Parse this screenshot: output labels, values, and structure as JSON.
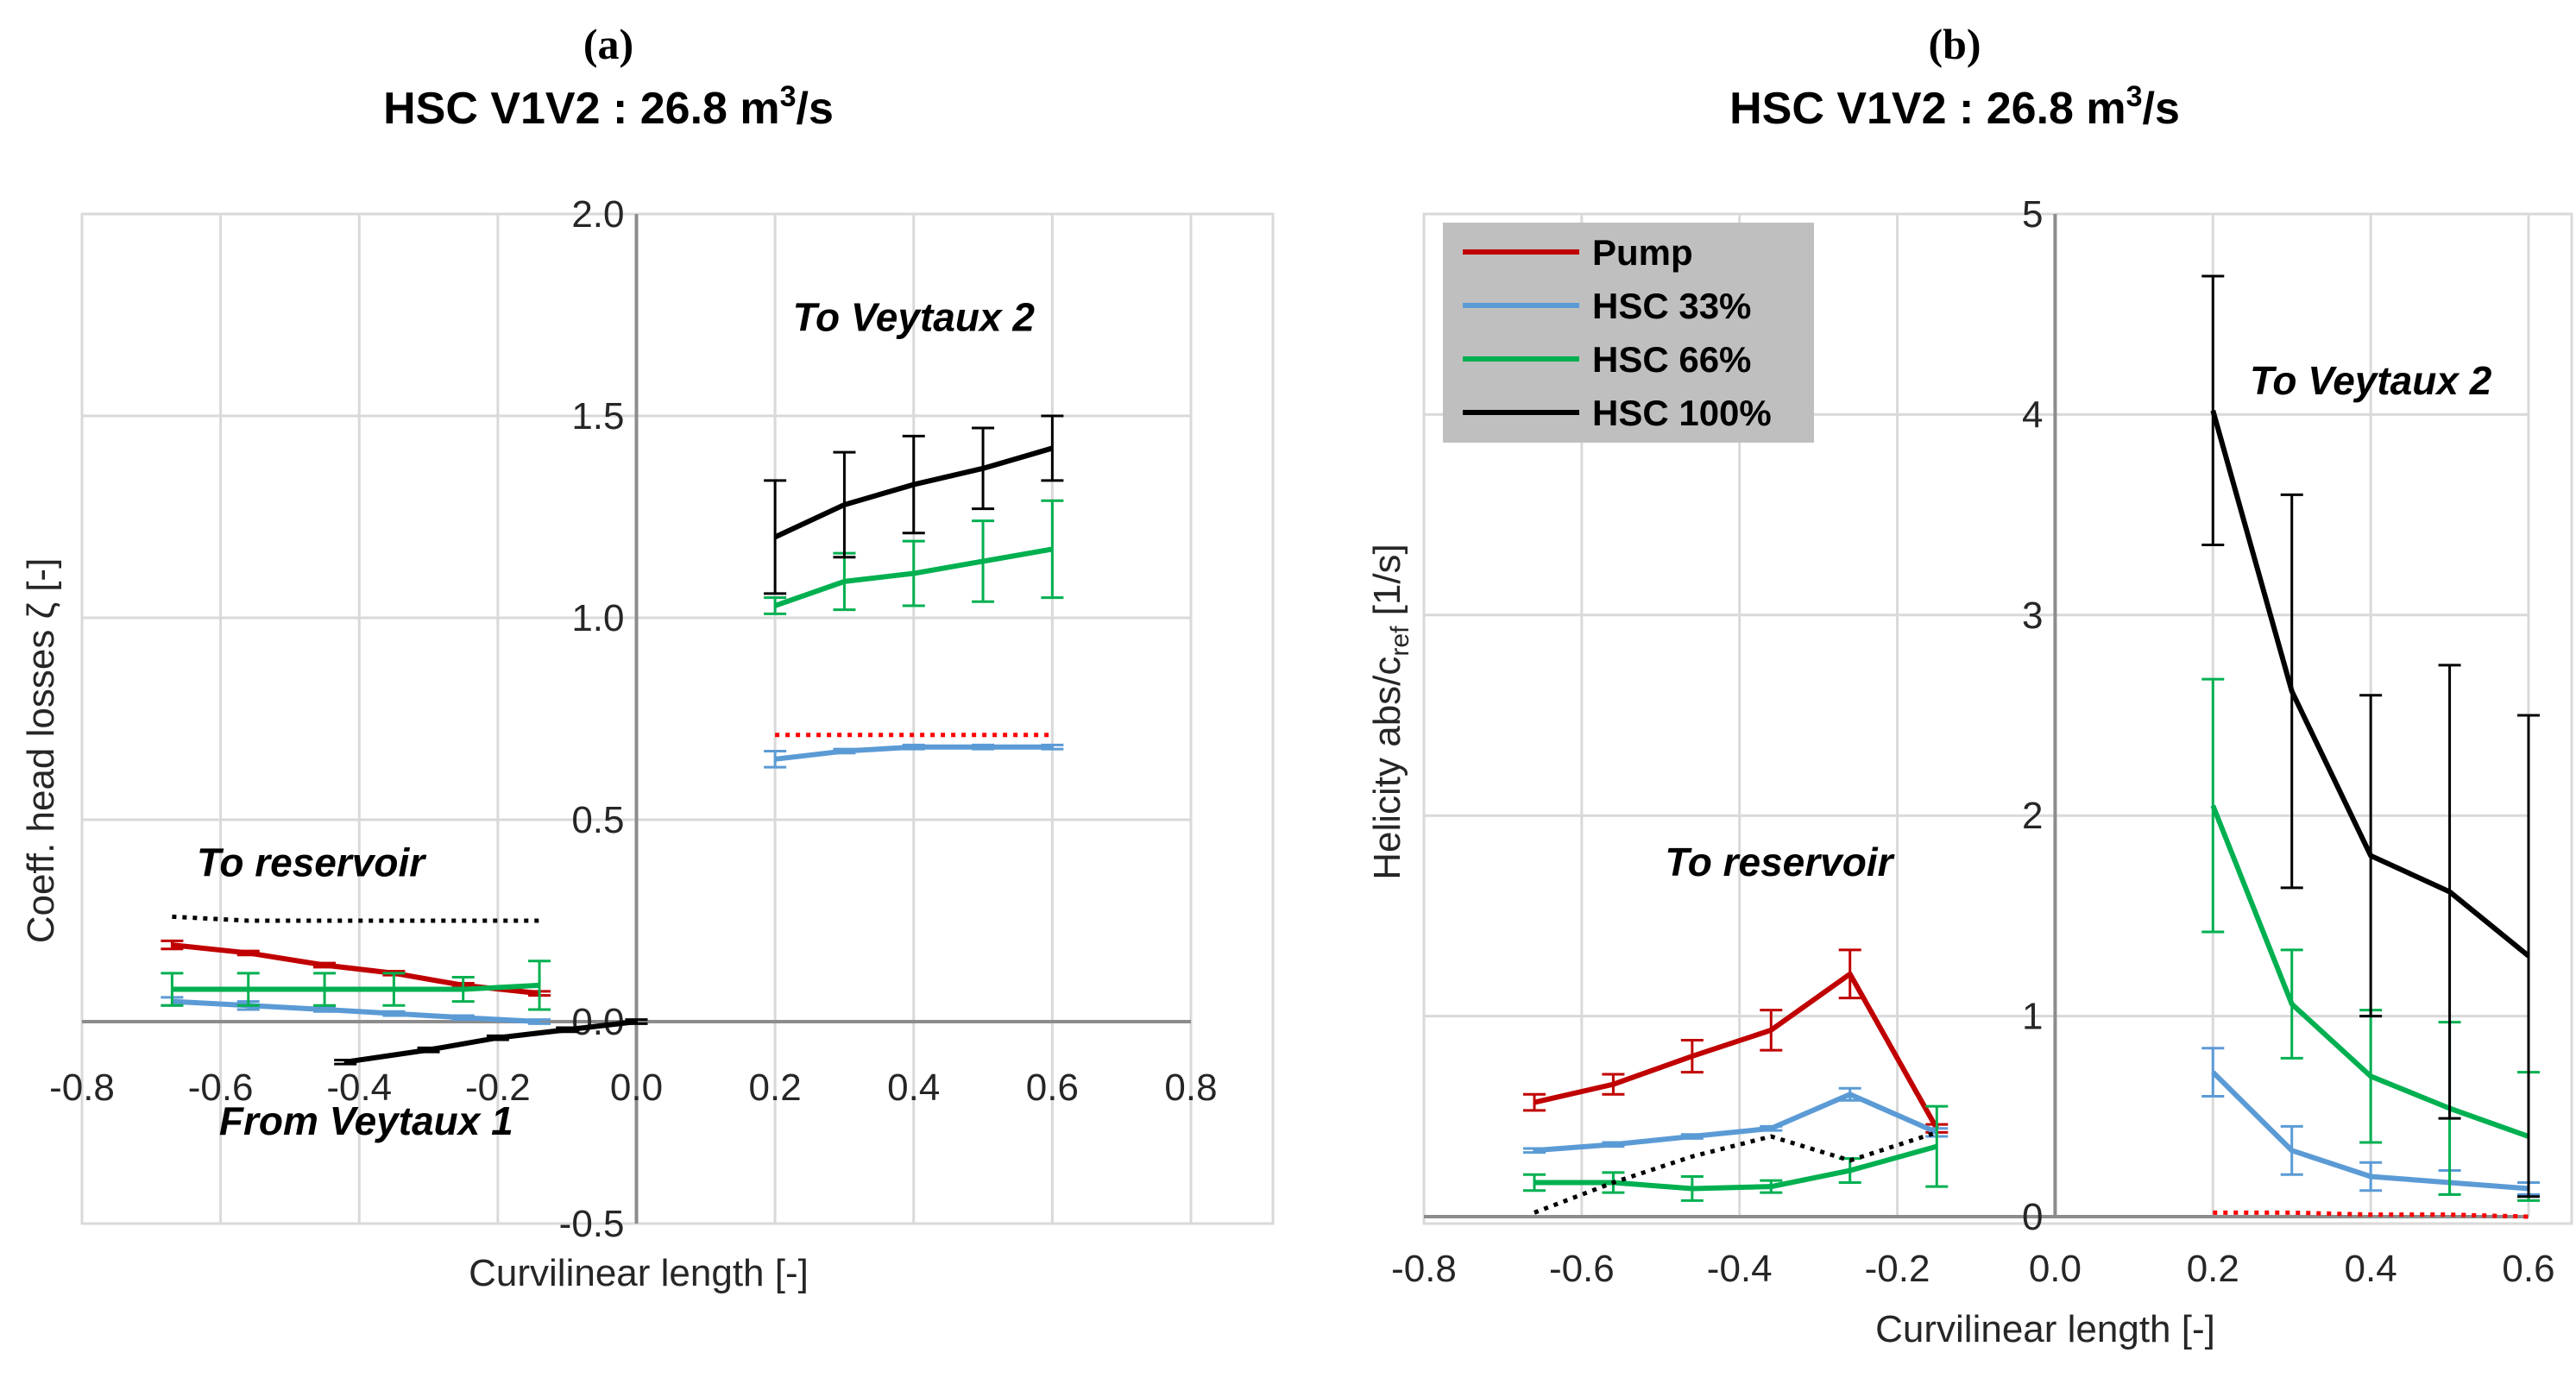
{
  "chart_data": [
    {
      "type": "line",
      "panel_label": "(a)",
      "title": "HSC V1V2 : 26.8 m",
      "title_sup": "3",
      "title_tail": "/s",
      "xlabel": "Curvilinear length [-]",
      "ylabel": "Coeff. head losses ζ [-]",
      "xlim": [
        -0.8,
        0.8
      ],
      "ylim": [
        -0.5,
        2.0
      ],
      "xticks": [
        -0.8,
        -0.6,
        -0.4,
        -0.2,
        0.0,
        0.2,
        0.4,
        0.6,
        0.8
      ],
      "xtick_labels": [
        "-0.8",
        "-0.6",
        "-0.4",
        "-0.2",
        "0.0",
        "0.2",
        "0.4",
        "0.6",
        "0.8"
      ],
      "yticks": [
        -0.5,
        0.0,
        0.5,
        1.0,
        1.5,
        2.0
      ],
      "ytick_labels": [
        "-0.5",
        "0.0",
        "0.5",
        "1.0",
        "1.5",
        "2.0"
      ],
      "annotations": [
        {
          "text": "To Veytaux 2",
          "x": 0.4,
          "y": 1.71
        },
        {
          "text": "To reservoir",
          "x": -0.47,
          "y": 0.36
        },
        {
          "text": "From Veytaux 1",
          "x": -0.39,
          "y": -0.28
        }
      ],
      "series": [
        {
          "name": "Pump",
          "color": "#c00000",
          "x": [
            -0.67,
            -0.56,
            -0.45,
            -0.35,
            -0.25,
            -0.14
          ],
          "y": [
            0.19,
            0.17,
            0.14,
            0.12,
            0.09,
            0.07
          ],
          "err": [
            0.01,
            0.005,
            0.005,
            0.005,
            0.005,
            0.005
          ]
        },
        {
          "name": "HSC 33%",
          "color": "#5b9bd5",
          "x": [
            -0.67,
            -0.56,
            -0.45,
            -0.35,
            -0.25,
            -0.14
          ],
          "y": [
            0.05,
            0.04,
            0.03,
            0.02,
            0.01,
            0.0
          ],
          "err": [
            0.01,
            0.01,
            0.005,
            0.005,
            0.005,
            0.005
          ]
        },
        {
          "name": "HSC 66%",
          "color": "#00b050",
          "x": [
            -0.67,
            -0.56,
            -0.45,
            -0.35,
            -0.25,
            -0.14
          ],
          "y": [
            0.08,
            0.08,
            0.08,
            0.08,
            0.08,
            0.09
          ],
          "err": [
            0.04,
            0.04,
            0.04,
            0.04,
            0.03,
            0.06
          ]
        },
        {
          "name": "HSC 66%",
          "color": "#00b050",
          "x": [
            0.2,
            0.3,
            0.4,
            0.5,
            0.6
          ],
          "y": [
            1.03,
            1.09,
            1.11,
            1.14,
            1.17
          ],
          "err": [
            0.02,
            0.07,
            0.08,
            0.1,
            0.12
          ]
        },
        {
          "name": "HSC 100%",
          "color": "#000000",
          "x": [
            0.2,
            0.3,
            0.4,
            0.5,
            0.6
          ],
          "y": [
            1.2,
            1.28,
            1.33,
            1.37,
            1.42
          ],
          "err": [
            0.14,
            0.13,
            0.12,
            0.1,
            0.08
          ]
        },
        {
          "name": "HSC 33%",
          "color": "#5b9bd5",
          "x": [
            0.2,
            0.3,
            0.4,
            0.5,
            0.6
          ],
          "y": [
            0.65,
            0.67,
            0.68,
            0.68,
            0.68
          ],
          "err": [
            0.02,
            0.005,
            0.005,
            0.005,
            0.005
          ]
        },
        {
          "name": "HSC 100%",
          "color": "#000000",
          "x": [
            -0.42,
            -0.3,
            -0.2,
            -0.1,
            0.0
          ],
          "y": [
            -0.1,
            -0.07,
            -0.04,
            -0.02,
            0.0
          ],
          "err": [
            0.005,
            0.005,
            0.005,
            0.005,
            0.005
          ]
        },
        {
          "name": "Pump",
          "color": "#ff0000",
          "dash": true,
          "x": [
            0.2,
            0.3,
            0.4,
            0.5,
            0.6
          ],
          "y": [
            0.71,
            0.71,
            0.71,
            0.71,
            0.71
          ],
          "err": [
            0,
            0,
            0,
            0,
            0
          ]
        },
        {
          "name": "Pump",
          "color": "#000000",
          "dash": true,
          "x": [
            -0.67,
            -0.56,
            -0.45,
            -0.35,
            -0.25,
            -0.14
          ],
          "y": [
            0.26,
            0.25,
            0.25,
            0.25,
            0.25,
            0.25
          ],
          "err": [
            0,
            0,
            0,
            0,
            0,
            0
          ]
        }
      ]
    },
    {
      "type": "line",
      "panel_label": "(b)",
      "title": "HSC V1V2 : 26.8 m",
      "title_sup": "3",
      "title_tail": "/s",
      "xlabel": "Curvilinear length [-]",
      "ylabel_main": "Helicity abs/c",
      "ylabel_sub": "ref",
      "ylabel_tail": " [1/s]",
      "xlim": [
        -0.8,
        0.6
      ],
      "ylim": [
        0,
        5
      ],
      "xticks": [
        -0.8,
        -0.6,
        -0.4,
        -0.2,
        0.0,
        0.2,
        0.4,
        0.6
      ],
      "xtick_labels": [
        "-0.8",
        "-0.6",
        "-0.4",
        "-0.2",
        "0.0",
        "0.2",
        "0.4",
        "0.6"
      ],
      "yticks": [
        0,
        1,
        2,
        3,
        4,
        5
      ],
      "ytick_labels": [
        "0",
        "1",
        "2",
        "3",
        "4",
        "5"
      ],
      "legend": {
        "position": "top-left",
        "entries": [
          {
            "label": "Pump",
            "color": "#c00000"
          },
          {
            "label": "HSC 33%",
            "color": "#5b9bd5"
          },
          {
            "label": "HSC 66%",
            "color": "#00b050"
          },
          {
            "label": "HSC 100%",
            "color": "#000000"
          }
        ]
      },
      "annotations": [
        {
          "text": "To Veytaux 2",
          "x": 0.4,
          "y": 4.1
        },
        {
          "text": "To reservoir",
          "x": -0.35,
          "y": 1.7
        }
      ],
      "series": [
        {
          "name": "Pump",
          "color": "#c00000",
          "x": [
            -0.66,
            -0.56,
            -0.46,
            -0.36,
            -0.26,
            -0.15
          ],
          "y": [
            0.57,
            0.66,
            0.8,
            0.93,
            1.21,
            0.44
          ],
          "err": [
            0.04,
            0.05,
            0.08,
            0.1,
            0.12,
            0.02
          ]
        },
        {
          "name": "HSC 33%",
          "color": "#5b9bd5",
          "x": [
            -0.66,
            -0.56,
            -0.46,
            -0.36,
            -0.26,
            -0.15
          ],
          "y": [
            0.33,
            0.36,
            0.4,
            0.44,
            0.61,
            0.42
          ],
          "err": [
            0.01,
            0.01,
            0.01,
            0.01,
            0.03,
            0.02
          ]
        },
        {
          "name": "HSC 66%",
          "color": "#00b050",
          "x": [
            -0.66,
            -0.56,
            -0.46,
            -0.36,
            -0.26,
            -0.15
          ],
          "y": [
            0.17,
            0.17,
            0.14,
            0.15,
            0.23,
            0.35
          ],
          "err": [
            0.04,
            0.05,
            0.06,
            0.03,
            0.06,
            0.2
          ]
        },
        {
          "name": "HSC 100%",
          "color": "#000000",
          "dash": true,
          "x": [
            -0.66,
            -0.56,
            -0.46,
            -0.36,
            -0.26,
            -0.15
          ],
          "y": [
            0.02,
            0.17,
            0.3,
            0.4,
            0.28,
            0.42
          ],
          "err": [
            0,
            0,
            0,
            0,
            0,
            0
          ]
        },
        {
          "name": "Pump",
          "color": "#ff0000",
          "dash": true,
          "x": [
            0.2,
            0.3,
            0.4,
            0.5,
            0.6
          ],
          "y": [
            0.02,
            0.02,
            0.01,
            0.01,
            0.0
          ],
          "err": [
            0,
            0,
            0,
            0,
            0
          ]
        },
        {
          "name": "HSC 33%",
          "color": "#5b9bd5",
          "x": [
            0.2,
            0.3,
            0.4,
            0.5,
            0.6
          ],
          "y": [
            0.72,
            0.33,
            0.2,
            0.17,
            0.14
          ],
          "err": [
            0.12,
            0.12,
            0.07,
            0.06,
            0.03
          ]
        },
        {
          "name": "HSC 66%",
          "color": "#00b050",
          "x": [
            0.2,
            0.3,
            0.4,
            0.5,
            0.6
          ],
          "y": [
            2.05,
            1.06,
            0.7,
            0.54,
            0.4
          ],
          "err": [
            0.63,
            0.27,
            0.33,
            0.43,
            0.32
          ]
        },
        {
          "name": "HSC 100%",
          "color": "#000000",
          "x": [
            0.2,
            0.3,
            0.4,
            0.5,
            0.6
          ],
          "y": [
            4.02,
            2.62,
            1.8,
            1.62,
            1.3
          ],
          "err": [
            0.67,
            0.98,
            0.8,
            1.13,
            1.2
          ]
        }
      ]
    }
  ]
}
